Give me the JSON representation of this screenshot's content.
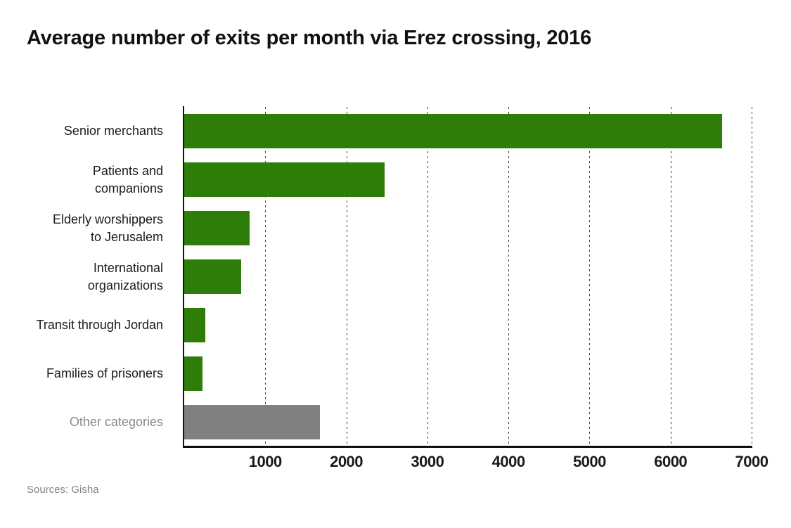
{
  "header": {
    "title": "Average number of exits per month via Erez crossing, 2016"
  },
  "footer": {
    "source_label": "Sources: Gisha"
  },
  "colors": {
    "bar_green": "#2e7d08",
    "bar_gray": "#808080",
    "axis": "#111111",
    "grid": "#3c3c3c",
    "text": "#1a1a1a",
    "muted_text": "#8a8a8a"
  },
  "chart_data": {
    "type": "bar",
    "orientation": "horizontal",
    "title": "Average number of exits per month via Erez crossing, 2016",
    "categories": [
      "Senior merchants",
      "Patients and companions",
      "Elderly worshippers to Jerusalem",
      "International organizations",
      "Transit through Jordan",
      "Families of prisoners",
      "Other categories"
    ],
    "category_label_lines": [
      [
        "Senior merchants"
      ],
      [
        "Patients and",
        "companions"
      ],
      [
        "Elderly worshippers",
        "to Jerusalem"
      ],
      [
        "International",
        "organizations"
      ],
      [
        "Transit through Jordan"
      ],
      [
        "Families of prisoners"
      ],
      [
        "Other categories"
      ]
    ],
    "values": [
      6640,
      2470,
      810,
      700,
      260,
      225,
      1670
    ],
    "muted": [
      false,
      false,
      false,
      false,
      false,
      false,
      true
    ],
    "xlim": [
      0,
      7000
    ],
    "x_ticks": [
      1000,
      2000,
      3000,
      4000,
      5000,
      6000,
      7000
    ],
    "x_tick_labels": [
      "1000",
      "2000",
      "3000",
      "4000",
      "5000",
      "6000",
      "7000"
    ],
    "grid": "vertical-dashed",
    "legend": "none",
    "source": "Sources: Gisha"
  }
}
